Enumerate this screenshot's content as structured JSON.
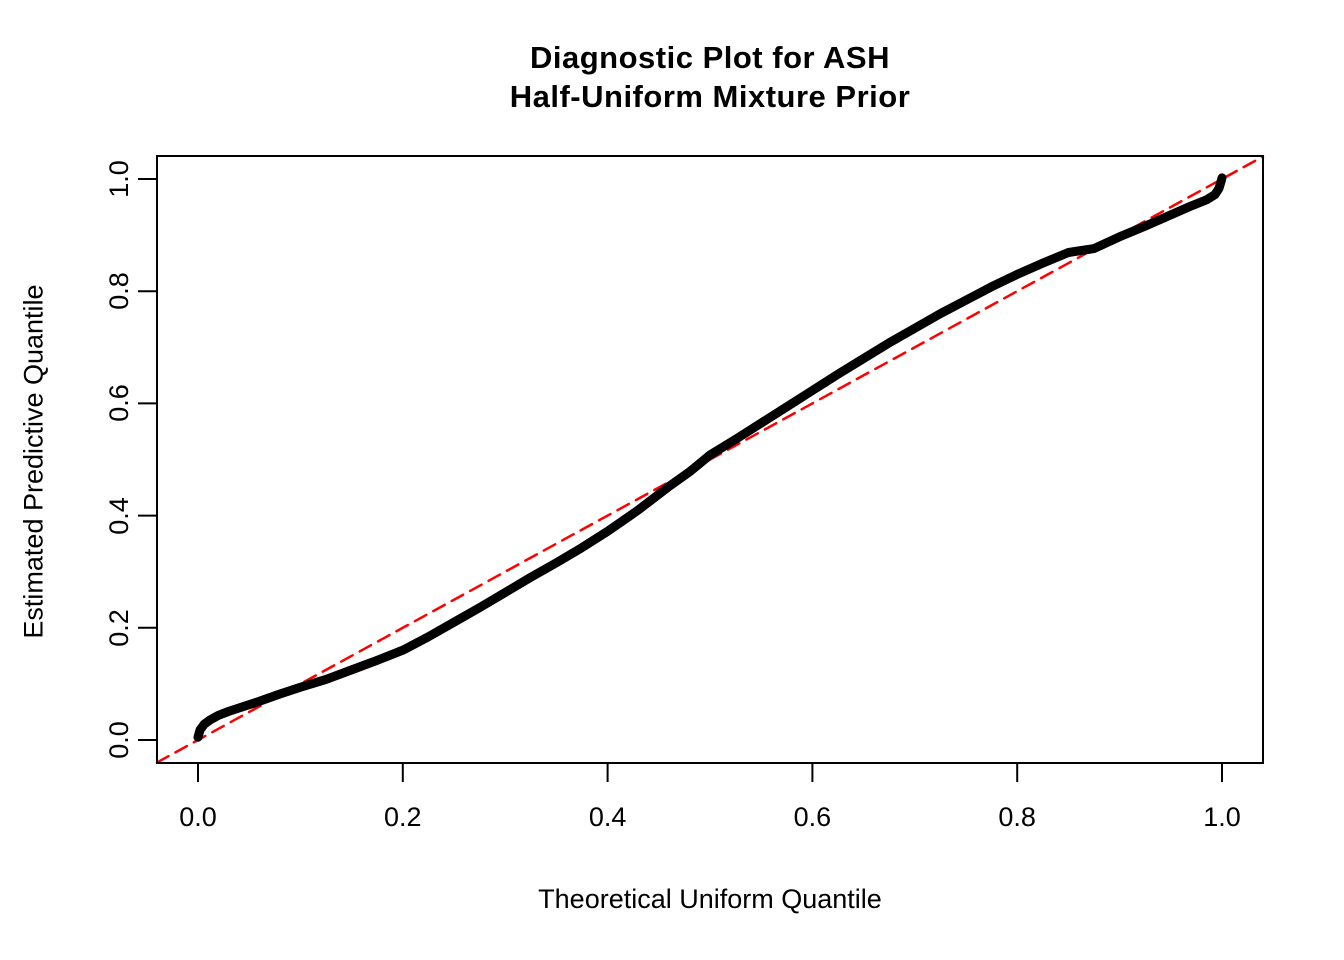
{
  "title": {
    "line1": "Diagnostic Plot for ASH",
    "line2": "Half-Uniform Mixture Prior"
  },
  "chart_data": {
    "type": "line",
    "title": "Diagnostic Plot for ASH\nHalf-Uniform Mixture Prior",
    "xlabel": "Theoretical Uniform Quantile",
    "ylabel": "Estimated Predictive Quantile",
    "xlim": [
      -0.04,
      1.04
    ],
    "ylim": [
      -0.04,
      1.04
    ],
    "x_ticks": [
      0.0,
      0.2,
      0.4,
      0.6,
      0.8,
      1.0
    ],
    "y_ticks": [
      0.0,
      0.2,
      0.4,
      0.6,
      0.8,
      1.0
    ],
    "x_tick_labels": [
      "0.0",
      "0.2",
      "0.4",
      "0.6",
      "0.8",
      "1.0"
    ],
    "y_tick_labels": [
      "0.0",
      "0.2",
      "0.4",
      "0.6",
      "0.8",
      "1.0"
    ],
    "grid": false,
    "legend": "none",
    "series": [
      {
        "name": "estimated-predictive-quantile-curve",
        "type": "line",
        "color": "#000000",
        "width": 9,
        "style": "solid",
        "points": [
          [
            0.0,
            0.005
          ],
          [
            0.002,
            0.018
          ],
          [
            0.006,
            0.028
          ],
          [
            0.012,
            0.036
          ],
          [
            0.02,
            0.044
          ],
          [
            0.03,
            0.051
          ],
          [
            0.04,
            0.057
          ],
          [
            0.06,
            0.069
          ],
          [
            0.08,
            0.082
          ],
          [
            0.1,
            0.094
          ],
          [
            0.125,
            0.108
          ],
          [
            0.15,
            0.125
          ],
          [
            0.175,
            0.142
          ],
          [
            0.2,
            0.16
          ],
          [
            0.225,
            0.184
          ],
          [
            0.25,
            0.21
          ],
          [
            0.275,
            0.236
          ],
          [
            0.3,
            0.263
          ],
          [
            0.325,
            0.29
          ],
          [
            0.35,
            0.316
          ],
          [
            0.375,
            0.343
          ],
          [
            0.4,
            0.372
          ],
          [
            0.43,
            0.41
          ],
          [
            0.46,
            0.452
          ],
          [
            0.48,
            0.478
          ],
          [
            0.5,
            0.508
          ],
          [
            0.525,
            0.536
          ],
          [
            0.55,
            0.565
          ],
          [
            0.575,
            0.594
          ],
          [
            0.6,
            0.623
          ],
          [
            0.625,
            0.652
          ],
          [
            0.65,
            0.68
          ],
          [
            0.675,
            0.708
          ],
          [
            0.7,
            0.734
          ],
          [
            0.725,
            0.76
          ],
          [
            0.75,
            0.784
          ],
          [
            0.775,
            0.808
          ],
          [
            0.8,
            0.83
          ],
          [
            0.825,
            0.85
          ],
          [
            0.85,
            0.869
          ],
          [
            0.875,
            0.876
          ],
          [
            0.9,
            0.897
          ],
          [
            0.925,
            0.916
          ],
          [
            0.95,
            0.936
          ],
          [
            0.97,
            0.952
          ],
          [
            0.985,
            0.963
          ],
          [
            0.993,
            0.972
          ],
          [
            0.997,
            0.983
          ],
          [
            0.999,
            0.995
          ],
          [
            1.0,
            1.002
          ]
        ]
      },
      {
        "name": "identity-reference-line",
        "type": "line",
        "color": "#FF0000",
        "width": 2.5,
        "style": "dashed",
        "points": [
          [
            -0.04,
            -0.04
          ],
          [
            1.04,
            1.04
          ]
        ]
      }
    ]
  },
  "colors": {
    "curve": "#000000",
    "reference_line": "#FF0000",
    "plot_border": "#000000",
    "background": "#FFFFFF"
  }
}
